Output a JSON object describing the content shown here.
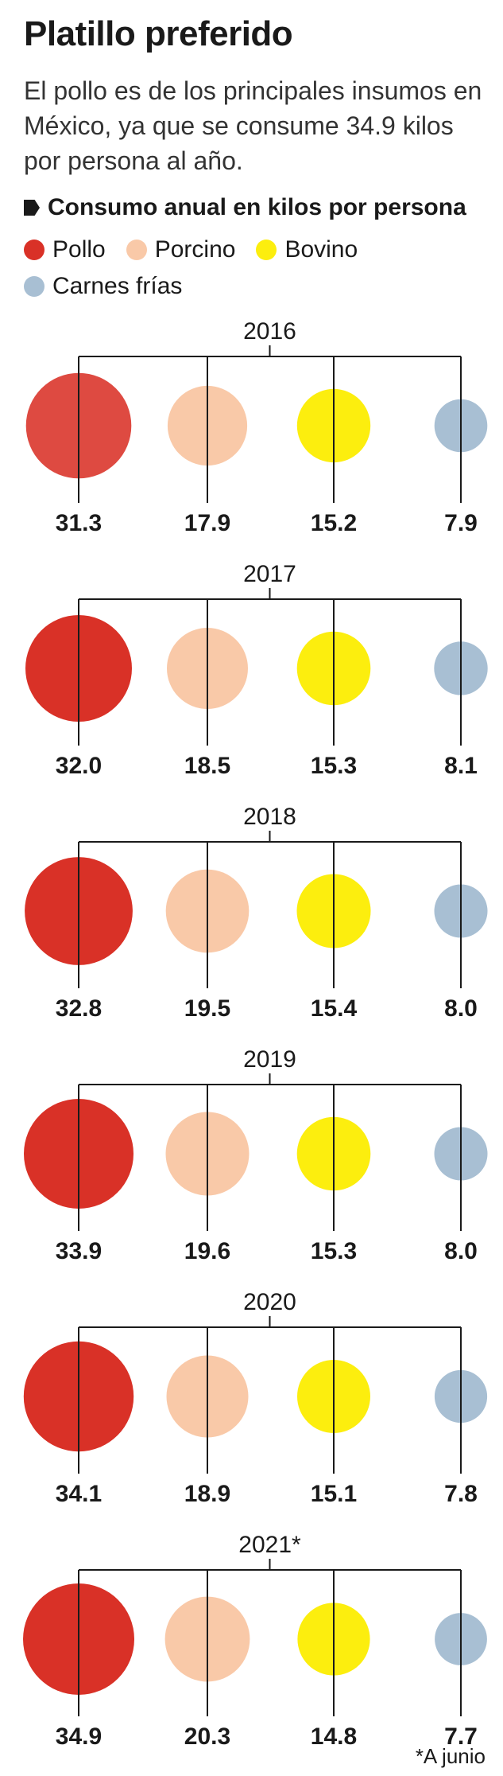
{
  "header": {
    "title": "Platillo preferido",
    "subtitle": "El pollo es de los principales insumos en México, ya que se consume 34.9 kilos por persona al año.",
    "measure": "Consumo anual en kilos por persona"
  },
  "legend": [
    {
      "name": "Pollo",
      "color": "#d93127"
    },
    {
      "name": "Porcino",
      "color": "#f9c9a8"
    },
    {
      "name": "Bovino",
      "color": "#fcee0e"
    },
    {
      "name": "Carnes frías",
      "color": "#a8bfd3"
    }
  ],
  "footnote": "*A junio",
  "chart_data": {
    "type": "bubble",
    "categories": [
      "Pollo",
      "Porcino",
      "Bovino",
      "Carnes frías"
    ],
    "colors": [
      "#d93127",
      "#f9c9a8",
      "#fcee0e",
      "#a8bfd3"
    ],
    "unit": "kilos por persona",
    "groups": [
      {
        "year": "2016",
        "values": [
          "31.3",
          "17.9",
          "15.2",
          "7.9"
        ]
      },
      {
        "year": "2017",
        "values": [
          "32.0",
          "18.5",
          "15.3",
          "8.1"
        ]
      },
      {
        "year": "2018",
        "values": [
          "32.8",
          "19.5",
          "15.4",
          "8.0"
        ]
      },
      {
        "year": "2019",
        "values": [
          "33.9",
          "19.6",
          "15.3",
          "8.0"
        ]
      },
      {
        "year": "2020",
        "values": [
          "34.1",
          "18.9",
          "15.1",
          "7.8"
        ]
      },
      {
        "year": "2021*",
        "values": [
          "34.9",
          "20.3",
          "14.8",
          "7.7"
        ]
      }
    ]
  }
}
